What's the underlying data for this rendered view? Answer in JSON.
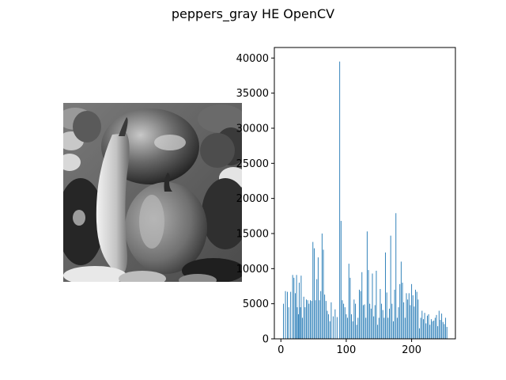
{
  "figure": {
    "title": "peppers_gray HE OpenCV"
  },
  "image_panel": {
    "image": "grayscale-peppers-photo"
  },
  "chart_data": {
    "type": "bar",
    "title": "",
    "xlabel": "",
    "ylabel": "",
    "xlim": [
      -10,
      267
    ],
    "ylim": [
      0,
      41500
    ],
    "x_ticks": [
      0,
      100,
      200
    ],
    "y_ticks": [
      0,
      5000,
      10000,
      15000,
      20000,
      25000,
      30000,
      35000,
      40000
    ],
    "x_tick_labels": [
      "0",
      "100",
      "200"
    ],
    "y_tick_labels": [
      "0",
      "5000",
      "10000",
      "15000",
      "20000",
      "25000",
      "30000",
      "35000",
      "40000"
    ],
    "bar_color": "#1f77b4",
    "grid": false,
    "series": [
      {
        "x": [
          4,
          7,
          10,
          12,
          15,
          18,
          20,
          22,
          24,
          25,
          27,
          28,
          30,
          31,
          33,
          35,
          37,
          39,
          41,
          43,
          45,
          47,
          49,
          51,
          53,
          55,
          57,
          59,
          61,
          63,
          65,
          67,
          69,
          71,
          73,
          75,
          77,
          80,
          83,
          86,
          90,
          92,
          94,
          96,
          98,
          100,
          102,
          104,
          106,
          108,
          110,
          112,
          114,
          116,
          118,
          120,
          122,
          124,
          126,
          128,
          130,
          132,
          134,
          136,
          138,
          140,
          142,
          144,
          146,
          148,
          150,
          152,
          154,
          156,
          158,
          160,
          162,
          164,
          166,
          168,
          170,
          172,
          174,
          176,
          178,
          180,
          182,
          184,
          186,
          188,
          190,
          192,
          194,
          196,
          198,
          200,
          202,
          204,
          206,
          208,
          210,
          212,
          214,
          216,
          218,
          220,
          222,
          224,
          226,
          228,
          230,
          232,
          234,
          236,
          238,
          240,
          242,
          244,
          246,
          248,
          250,
          252,
          254
        ],
        "values": [
          5000,
          6800,
          6700,
          4500,
          6700,
          9100,
          8700,
          6500,
          9100,
          4500,
          3500,
          8000,
          4500,
          9000,
          3000,
          6000,
          4500,
          5600,
          5500,
          5000,
          5500,
          5400,
          13800,
          12900,
          5500,
          8500,
          11600,
          5500,
          6800,
          15000,
          12700,
          6300,
          5400,
          4000,
          3500,
          2500,
          5200,
          3200,
          4200,
          3100,
          39500,
          16800,
          5500,
          5000,
          4500,
          3500,
          3000,
          10700,
          8700,
          3500,
          2500,
          5600,
          5000,
          2000,
          3000,
          7000,
          6800,
          9500,
          4800,
          4900,
          3000,
          15300,
          9800,
          5000,
          4300,
          9300,
          3200,
          4800,
          9700,
          2000,
          3000,
          7100,
          5000,
          4100,
          3000,
          12300,
          6600,
          3000,
          4300,
          14700,
          5000,
          2500,
          7000,
          17900,
          3000,
          4500,
          7800,
          11000,
          8000,
          5200,
          3000,
          6500,
          5600,
          6500,
          4800,
          7800,
          6200,
          4600,
          7000,
          6700,
          5600,
          1500,
          3000,
          4000,
          2800,
          3700,
          2200,
          3300,
          3500,
          2000,
          2800,
          2500,
          2600,
          3000,
          3400,
          1800,
          4000,
          2700,
          3600,
          2400,
          2100,
          3000,
          1700
        ]
      }
    ]
  }
}
